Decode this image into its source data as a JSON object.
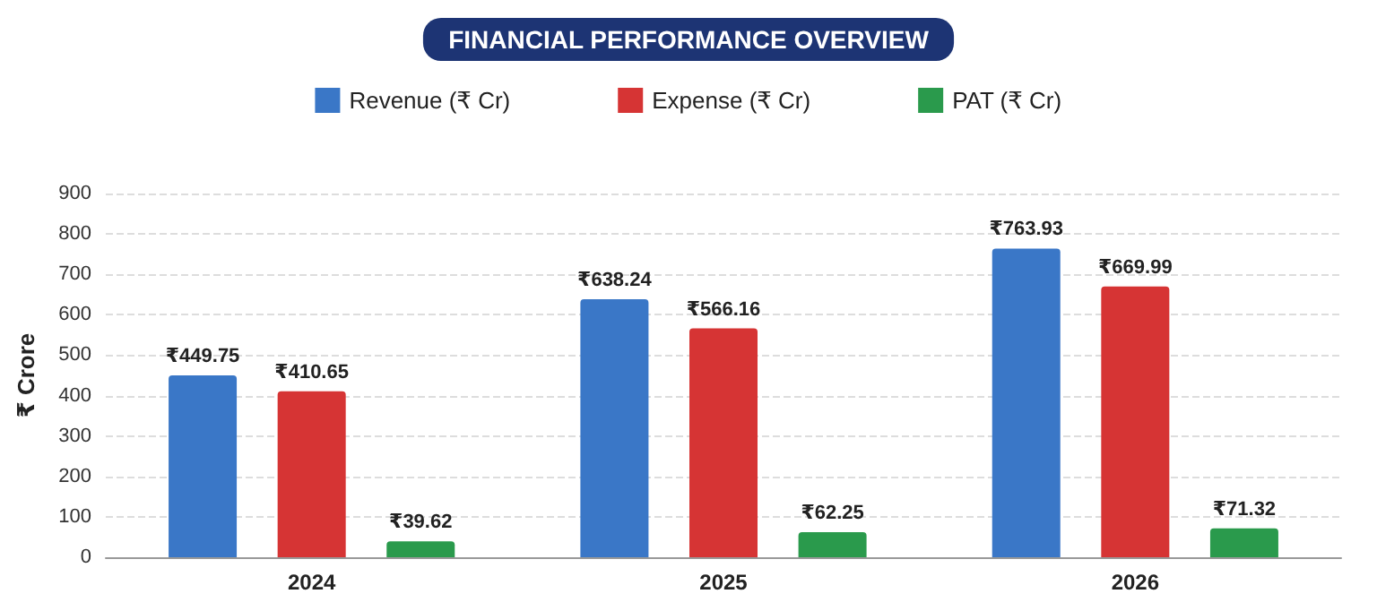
{
  "chart_data": {
    "type": "bar",
    "subtitle": "FINANCIAL PERFORMANCE OVERVIEW",
    "ylabel": "₹ Crore",
    "categories": [
      "2024",
      "2025",
      "2026"
    ],
    "series": [
      {
        "name": "Revenue (₹ Cr)",
        "color": "#3a77c7",
        "values": [
          449.75,
          638.24,
          763.93
        ],
        "value_labels": [
          "₹449.75",
          "₹638.24",
          "₹763.93"
        ]
      },
      {
        "name": "Expense (₹ Cr)",
        "color": "#d63434",
        "values": [
          410.65,
          566.16,
          669.99
        ],
        "value_labels": [
          "₹410.65",
          "₹566.16",
          "₹669.99"
        ]
      },
      {
        "name": "PAT (₹ Cr)",
        "color": "#2a9a4c",
        "values": [
          39.62,
          62.25,
          71.32
        ],
        "value_labels": [
          "₹39.62",
          "₹62.25",
          "₹71.32"
        ]
      }
    ],
    "ylim": [
      0,
      900
    ],
    "yticks": [
      0,
      100,
      200,
      300,
      400,
      500,
      600,
      700,
      800,
      900
    ],
    "grid": "y",
    "legend": "top"
  }
}
